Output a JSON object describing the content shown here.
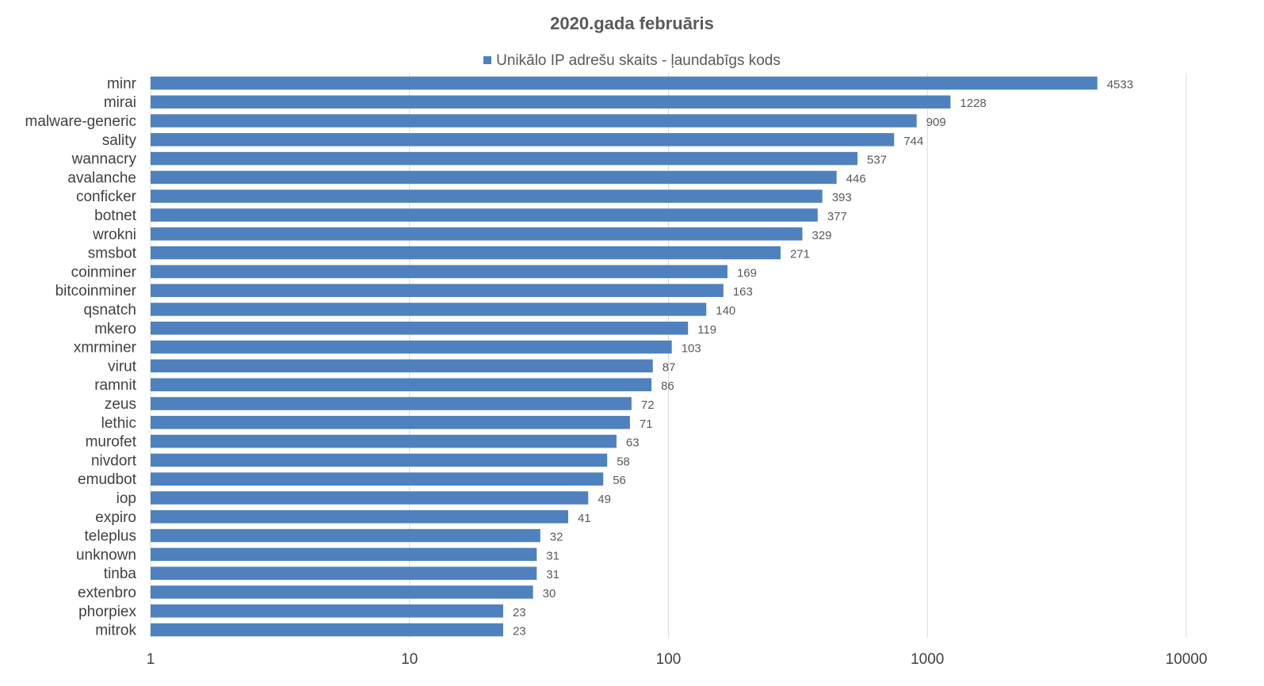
{
  "chart_data": {
    "type": "bar",
    "orientation": "horizontal",
    "title": "2020.gada februāris",
    "xscale": "log",
    "xlim": [
      1,
      10000
    ],
    "xticks": [
      1,
      10,
      100,
      1000,
      10000
    ],
    "xtick_labels": [
      "1",
      "10",
      "100",
      "1000",
      "10000"
    ],
    "grid": "vertical",
    "legend_position": "top",
    "categories": [
      "minr",
      "mirai",
      "malware-generic",
      "sality",
      "wannacry",
      "avalanche",
      "conficker",
      "botnet",
      "wrokni",
      "smsbot",
      "coinminer",
      "bitcoinminer",
      "qsnatch",
      "mkero",
      "xmrminer",
      "virut",
      "ramnit",
      "zeus",
      "lethic",
      "murofet",
      "nivdort",
      "emudbot",
      "iop",
      "expiro",
      "teleplus",
      "unknown",
      "tinba",
      "extenbro",
      "phorpiex",
      "mitrok"
    ],
    "series": [
      {
        "name": "Unikālo IP adrešu skaits -  ļaundabīgs kods",
        "color": "#4e81bd",
        "values": [
          4533,
          1228,
          909,
          744,
          537,
          446,
          393,
          377,
          329,
          271,
          169,
          163,
          140,
          119,
          103,
          87,
          86,
          72,
          71,
          63,
          58,
          56,
          49,
          41,
          32,
          31,
          31,
          30,
          23,
          23
        ]
      }
    ]
  }
}
